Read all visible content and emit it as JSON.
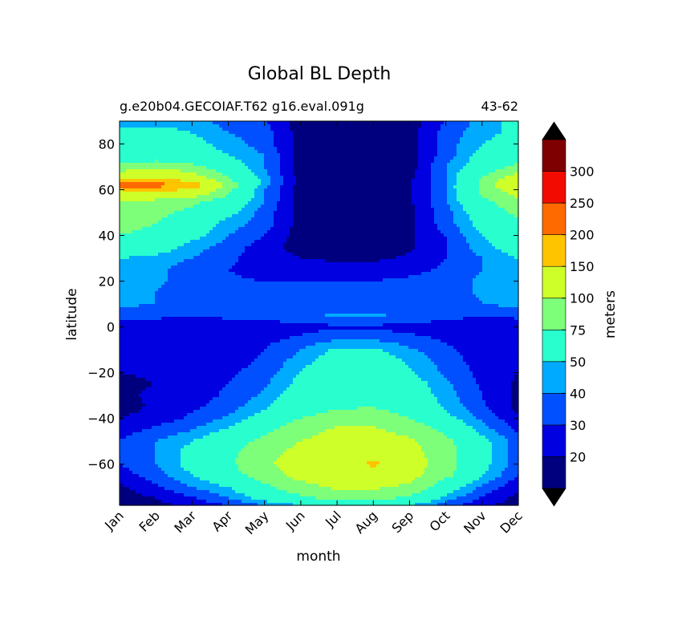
{
  "chart_data": {
    "type": "heatmap",
    "subtype": "filled-contour",
    "title": "Global BL Depth",
    "subtitle_left": "g.e20b04.GECOIAF.T62 g16.eval.091g",
    "subtitle_right": "43-62",
    "xlabel": "month",
    "ylabel": "latitude",
    "x_tick_labels": [
      "Jan",
      "Feb",
      "Mar",
      "Apr",
      "May",
      "Jun",
      "Jul",
      "Aug",
      "Sep",
      "Oct",
      "Nov",
      "Dec"
    ],
    "y_ticks": [
      -60,
      -40,
      -20,
      0,
      20,
      40,
      60,
      80
    ],
    "y_tick_labels": [
      "−60",
      "−40",
      "−20",
      "0",
      "20",
      "40",
      "60",
      "80"
    ],
    "ylim": [
      -78,
      90
    ],
    "colorbar": {
      "label": "meters",
      "levels": [
        0,
        20,
        30,
        40,
        50,
        75,
        100,
        150,
        200,
        250,
        300,
        350
      ],
      "tick_labels": [
        "20",
        "30",
        "40",
        "50",
        "75",
        "100",
        "150",
        "200",
        "250",
        "300"
      ],
      "colors": [
        "#00007f",
        "#0000e0",
        "#0050ff",
        "#00aaff",
        "#29ffce",
        "#7dff7a",
        "#ceff29",
        "#ffc400",
        "#ff6a00",
        "#f20b00",
        "#7f0000"
      ],
      "extend": "both",
      "under_color": "#000000",
      "over_color": "#000000"
    },
    "lat_rows": [
      90,
      85,
      80,
      75,
      70,
      65,
      62,
      60,
      55,
      50,
      45,
      40,
      35,
      30,
      25,
      20,
      15,
      10,
      5,
      0,
      -5,
      -10,
      -15,
      -20,
      -25,
      -30,
      -35,
      -40,
      -45,
      -50,
      -55,
      -60,
      -65,
      -70,
      -75,
      -78
    ],
    "values": [
      [
        45,
        45,
        45,
        35,
        30,
        15,
        12,
        12,
        15,
        30,
        45,
        55
      ],
      [
        55,
        55,
        50,
        40,
        35,
        15,
        12,
        12,
        15,
        35,
        45,
        55
      ],
      [
        60,
        60,
        55,
        45,
        35,
        15,
        12,
        12,
        15,
        35,
        50,
        60
      ],
      [
        60,
        60,
        60,
        50,
        40,
        15,
        12,
        12,
        15,
        35,
        55,
        65
      ],
      [
        80,
        90,
        80,
        60,
        40,
        15,
        12,
        12,
        15,
        40,
        60,
        80
      ],
      [
        130,
        150,
        120,
        75,
        45,
        15,
        12,
        12,
        18,
        40,
        75,
        120
      ],
      [
        260,
        230,
        180,
        90,
        45,
        15,
        12,
        12,
        18,
        40,
        80,
        140
      ],
      [
        150,
        170,
        140,
        80,
        40,
        15,
        12,
        12,
        18,
        40,
        80,
        120
      ],
      [
        95,
        90,
        80,
        65,
        40,
        15,
        12,
        12,
        18,
        40,
        70,
        90
      ],
      [
        85,
        80,
        70,
        55,
        35,
        15,
        12,
        12,
        18,
        35,
        60,
        80
      ],
      [
        80,
        75,
        60,
        45,
        35,
        15,
        12,
        12,
        18,
        35,
        55,
        70
      ],
      [
        75,
        70,
        55,
        40,
        30,
        15,
        12,
        12,
        18,
        30,
        50,
        65
      ],
      [
        65,
        60,
        45,
        35,
        25,
        15,
        12,
        12,
        18,
        30,
        45,
        60
      ],
      [
        50,
        45,
        40,
        32,
        25,
        20,
        18,
        18,
        22,
        30,
        40,
        50
      ],
      [
        45,
        42,
        35,
        30,
        25,
        25,
        25,
        25,
        27,
        32,
        40,
        48
      ],
      [
        43,
        42,
        35,
        32,
        30,
        30,
        30,
        30,
        32,
        35,
        42,
        48
      ],
      [
        42,
        40,
        35,
        32,
        30,
        30,
        30,
        30,
        32,
        35,
        42,
        45
      ],
      [
        42,
        40,
        35,
        32,
        30,
        30,
        30,
        30,
        30,
        32,
        40,
        43
      ],
      [
        35,
        32,
        30,
        32,
        33,
        37,
        42,
        42,
        37,
        33,
        30,
        32
      ],
      [
        25,
        25,
        25,
        25,
        26,
        26,
        28,
        28,
        26,
        26,
        25,
        25
      ],
      [
        25,
        24,
        24,
        25,
        27,
        32,
        38,
        38,
        33,
        28,
        25,
        25
      ],
      [
        22,
        22,
        22,
        25,
        30,
        40,
        52,
        52,
        42,
        32,
        25,
        22
      ],
      [
        21,
        21,
        22,
        25,
        32,
        45,
        60,
        60,
        48,
        35,
        25,
        21
      ],
      [
        20,
        21,
        24,
        28,
        35,
        50,
        65,
        65,
        52,
        38,
        27,
        20
      ],
      [
        18,
        20,
        25,
        30,
        38,
        55,
        68,
        68,
        58,
        42,
        28,
        18
      ],
      [
        18,
        22,
        25,
        32,
        42,
        60,
        70,
        72,
        60,
        45,
        30,
        18
      ],
      [
        15,
        22,
        28,
        35,
        48,
        65,
        72,
        75,
        65,
        48,
        32,
        17
      ],
      [
        20,
        25,
        32,
        42,
        58,
        75,
        85,
        85,
        75,
        55,
        38,
        22
      ],
      [
        25,
        32,
        40,
        52,
        70,
        90,
        105,
        105,
        90,
        70,
        45,
        28
      ],
      [
        30,
        40,
        50,
        65,
        80,
        100,
        110,
        110,
        105,
        80,
        55,
        35
      ],
      [
        30,
        40,
        55,
        70,
        90,
        110,
        115,
        120,
        110,
        85,
        55,
        35
      ],
      [
        30,
        40,
        55,
        70,
        95,
        115,
        120,
        160,
        115,
        85,
        55,
        35
      ],
      [
        25,
        35,
        50,
        65,
        85,
        110,
        115,
        115,
        110,
        80,
        50,
        30
      ],
      [
        18,
        28,
        40,
        50,
        70,
        90,
        105,
        105,
        95,
        60,
        38,
        22
      ],
      [
        15,
        20,
        28,
        40,
        55,
        70,
        80,
        80,
        70,
        45,
        28,
        17
      ],
      [
        15,
        18,
        22,
        30,
        40,
        50,
        55,
        55,
        50,
        35,
        22,
        15
      ]
    ]
  }
}
